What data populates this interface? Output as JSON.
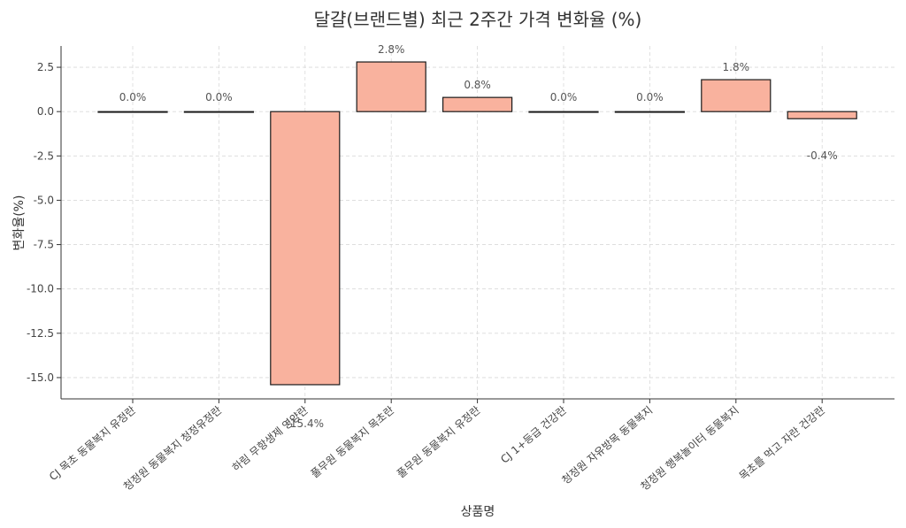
{
  "chart_data": {
    "type": "bar",
    "title": "달걀(브랜드별) 최근 2주간 가격 변화율 (%)",
    "xlabel": "상품명",
    "ylabel": "변화율(%)",
    "ylim": [
      -16.2,
      3.7
    ],
    "yticks": [
      2.5,
      0.0,
      -2.5,
      -5.0,
      -7.5,
      -10.0,
      -12.5,
      -15.0
    ],
    "ytick_labels": [
      "2.5",
      "0.0",
      "-2.5",
      "-5.0",
      "-7.5",
      "-10.0",
      "-12.5",
      "-15.0"
    ],
    "grid": true,
    "bar_color": "#f9b29e",
    "categories": [
      "CJ 목초 동물복지 유정란",
      "청정원 동물복지 청정유정란",
      "하림 무항생제 영양란",
      "풀무원 동물복지 목초란",
      "풀무원 동물복지 유정란",
      "CJ 1+등급 건강란",
      "청정원 자유방목 동물복지",
      "청정원 행복놀이터 동물복지",
      "목초를 먹고 자란 건강란"
    ],
    "values": [
      0.0,
      0.0,
      -15.4,
      2.8,
      0.8,
      0.0,
      0.0,
      1.8,
      -0.4
    ],
    "data_labels": [
      "0.0%",
      "0.0%",
      "-15.4%",
      "2.8%",
      "0.8%",
      "0.0%",
      "0.0%",
      "1.8%",
      "-0.4%"
    ]
  }
}
